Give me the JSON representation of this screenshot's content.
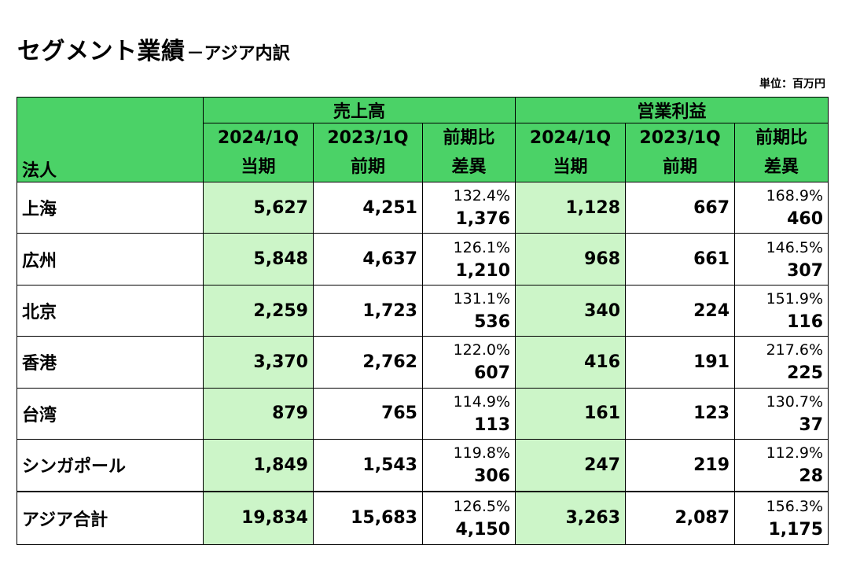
{
  "title": {
    "main": "セグメント業績",
    "sub": "－アジア内訳"
  },
  "unit": "単位：百万円",
  "header": {
    "corner": "法人",
    "sales_group": "売上高",
    "profit_group": "営業利益",
    "cols": {
      "current_1": "2024/1Q",
      "current_2": "当期",
      "previous_1": "2023/1Q",
      "previous_2": "前期",
      "ratio_1": "前期比",
      "ratio_2": "差異"
    }
  },
  "rows": [
    {
      "name": "上海",
      "sales": {
        "current": "5,627",
        "previous": "4,251",
        "pct": "132.4%",
        "diff": "1,376"
      },
      "profit": {
        "current": "1,128",
        "previous": "667",
        "pct": "168.9%",
        "diff": "460"
      }
    },
    {
      "name": "広州",
      "sales": {
        "current": "5,848",
        "previous": "4,637",
        "pct": "126.1%",
        "diff": "1,210"
      },
      "profit": {
        "current": "968",
        "previous": "661",
        "pct": "146.5%",
        "diff": "307"
      }
    },
    {
      "name": "北京",
      "sales": {
        "current": "2,259",
        "previous": "1,723",
        "pct": "131.1%",
        "diff": "536"
      },
      "profit": {
        "current": "340",
        "previous": "224",
        "pct": "151.9%",
        "diff": "116"
      }
    },
    {
      "name": "香港",
      "sales": {
        "current": "3,370",
        "previous": "2,762",
        "pct": "122.0%",
        "diff": "607"
      },
      "profit": {
        "current": "416",
        "previous": "191",
        "pct": "217.6%",
        "diff": "225"
      }
    },
    {
      "name": "台湾",
      "sales": {
        "current": "879",
        "previous": "765",
        "pct": "114.9%",
        "diff": "113"
      },
      "profit": {
        "current": "161",
        "previous": "123",
        "pct": "130.7%",
        "diff": "37"
      }
    },
    {
      "name": "シンガポール",
      "sales": {
        "current": "1,849",
        "previous": "1,543",
        "pct": "119.8%",
        "diff": "306"
      },
      "profit": {
        "current": "247",
        "previous": "219",
        "pct": "112.9%",
        "diff": "28"
      }
    }
  ],
  "total": {
    "name": "アジア合計",
    "sales": {
      "current": "19,834",
      "previous": "15,683",
      "pct": "126.5%",
      "diff": "4,150"
    },
    "profit": {
      "current": "3,263",
      "previous": "2,087",
      "pct": "156.3%",
      "diff": "1,175"
    }
  },
  "colors": {
    "header_green": "#4bd267",
    "current_column_green": "#ccf5c8",
    "border": "#000000"
  }
}
